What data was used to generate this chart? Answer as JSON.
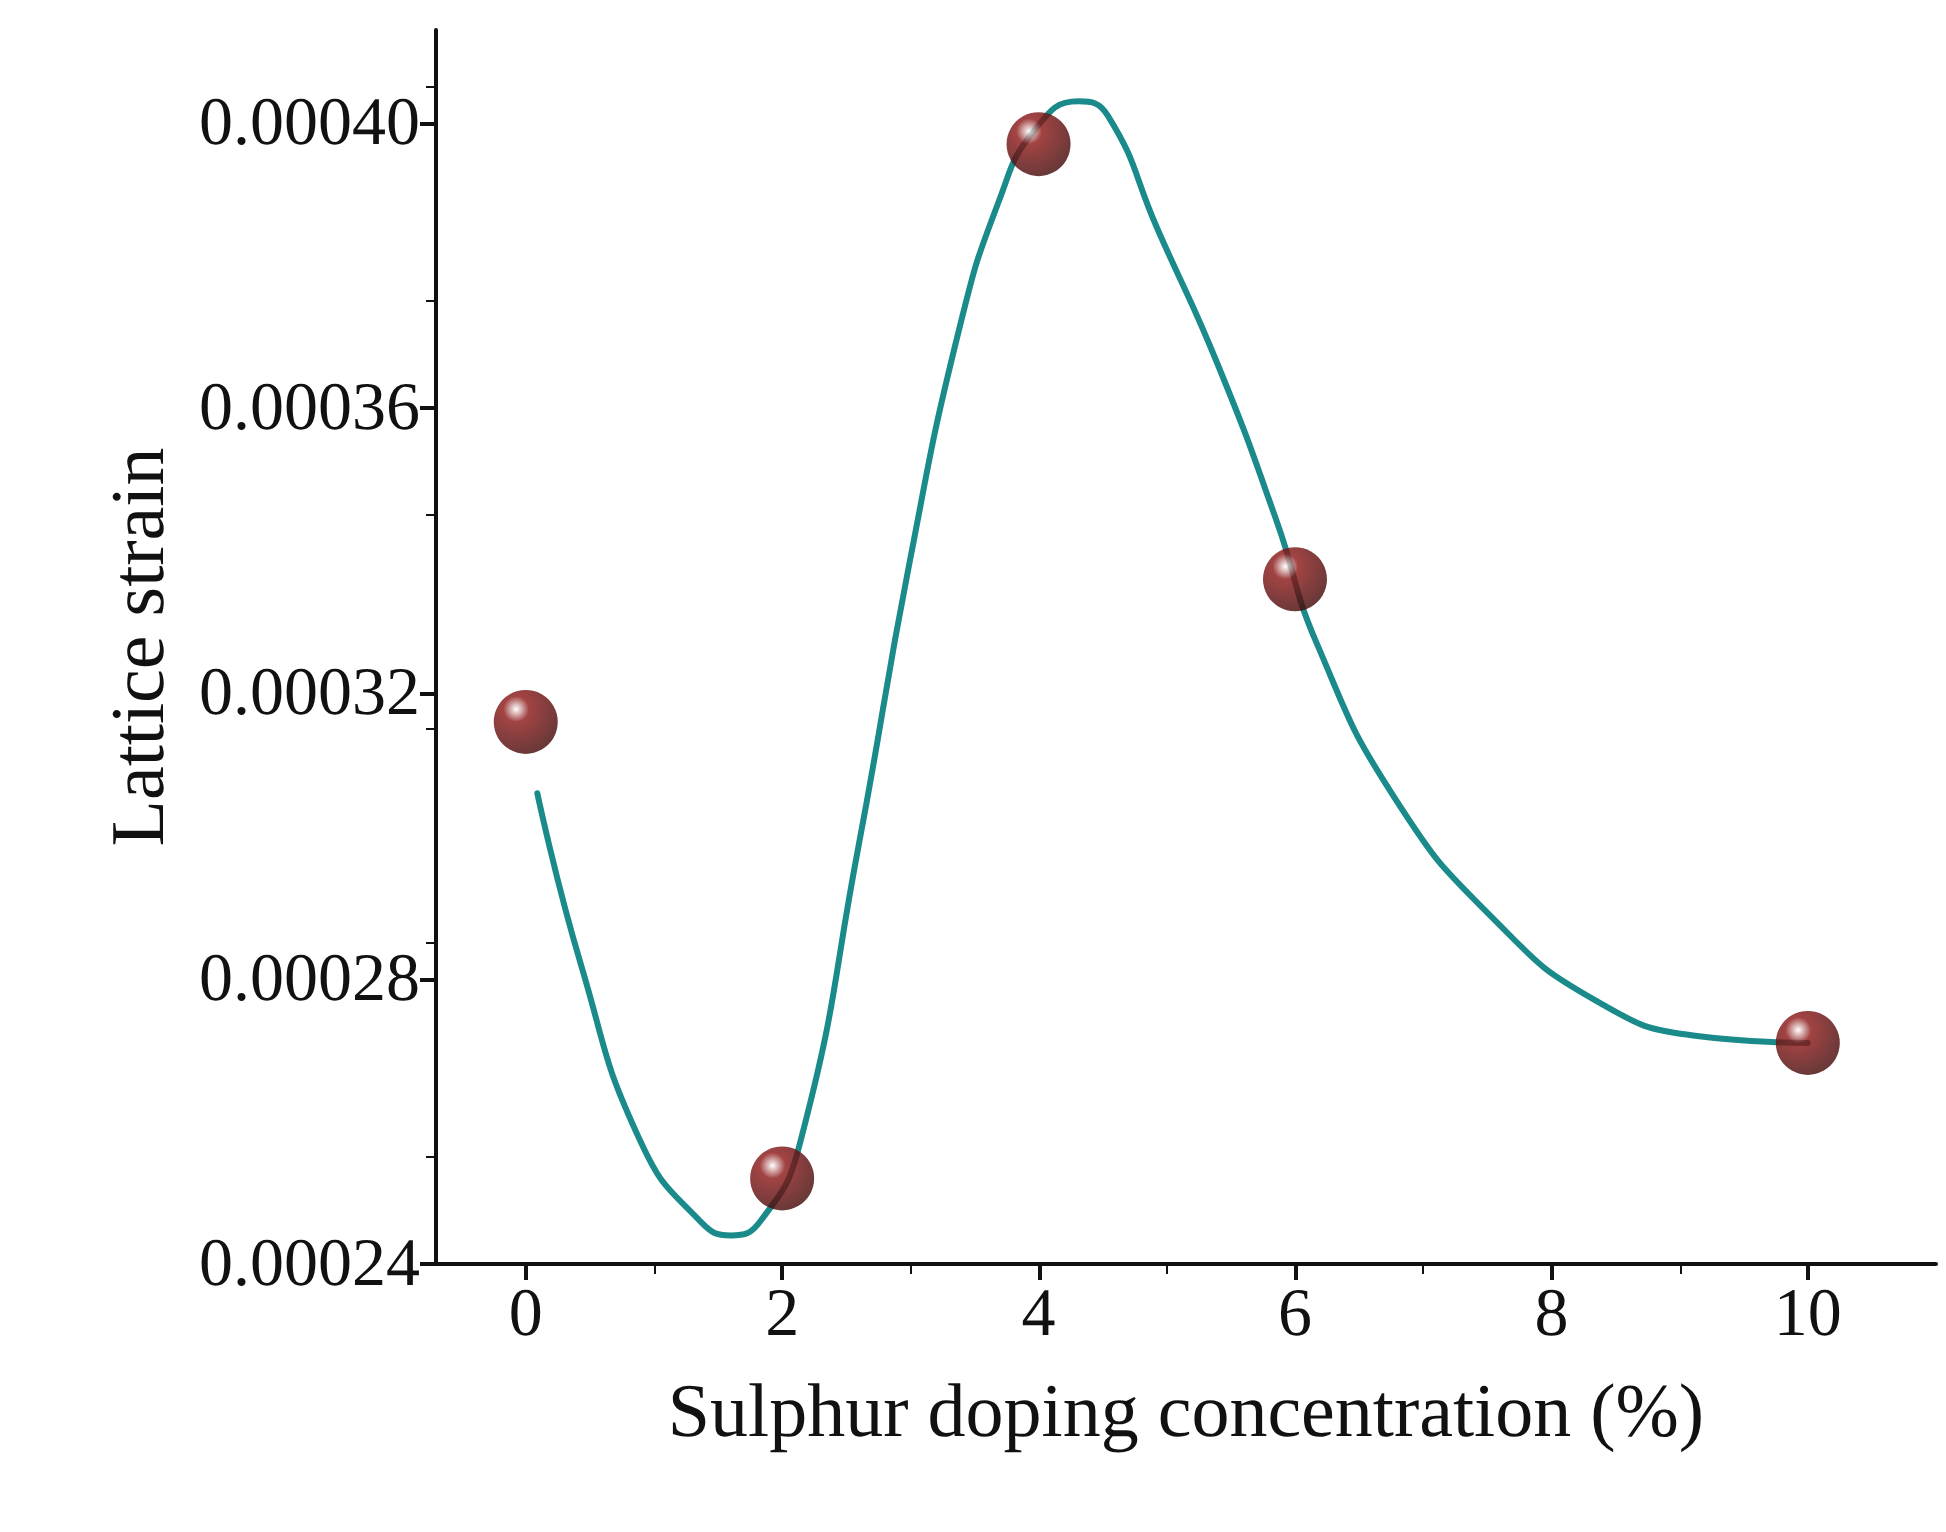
{
  "chart_data": {
    "type": "scatter",
    "xlabel": "Sulphur doping concentration (%)",
    "ylabel": "Lattice strain",
    "xlim": [
      -0.7,
      11
    ],
    "xticks": [
      0,
      2,
      4,
      6,
      8,
      10
    ],
    "ylim": [
      0.00024,
      0.000413
    ],
    "yticks": [
      {
        "value": 0.00024,
        "label": "0.00024"
      },
      {
        "value": 0.00028,
        "label": "0.00028"
      },
      {
        "value": 0.00032,
        "label": "0.00032"
      },
      {
        "value": 0.00036,
        "label": "0.00036"
      },
      {
        "value": 0.0004,
        "label": "0.00040"
      }
    ],
    "grid": false,
    "series": [
      {
        "type": "line",
        "color": "#1b8a8a",
        "marker": "none",
        "line_style": "solid",
        "x": [
          0.09,
          0.43,
          0.9,
          1.36,
          1.6,
          1.83,
          2.14,
          2.6,
          2.99,
          3.38,
          3.69,
          3.97,
          4.31,
          4.54,
          4.93,
          5.4,
          5.86,
          6.17,
          6.79,
          7.57,
          8.34,
          9.12,
          10.0
        ],
        "values": [
          0.000306,
          0.000282,
          0.000257,
          0.000246,
          0.000244,
          0.000246,
          0.000257,
          0.000299,
          0.000338,
          0.000371,
          0.000389,
          0.000399,
          0.000403,
          0.000401,
          0.000385,
          0.000366,
          0.000344,
          0.000327,
          0.000305,
          0.000288,
          0.000277,
          0.000272,
          0.000271
        ]
      },
      {
        "color": "#8b1414",
        "marker": "circle",
        "x": [
          0,
          2,
          4,
          6,
          10
        ],
        "values": [
          0.000316,
          0.000252,
          0.000397,
          0.000336,
          0.000271
        ]
      }
    ]
  }
}
